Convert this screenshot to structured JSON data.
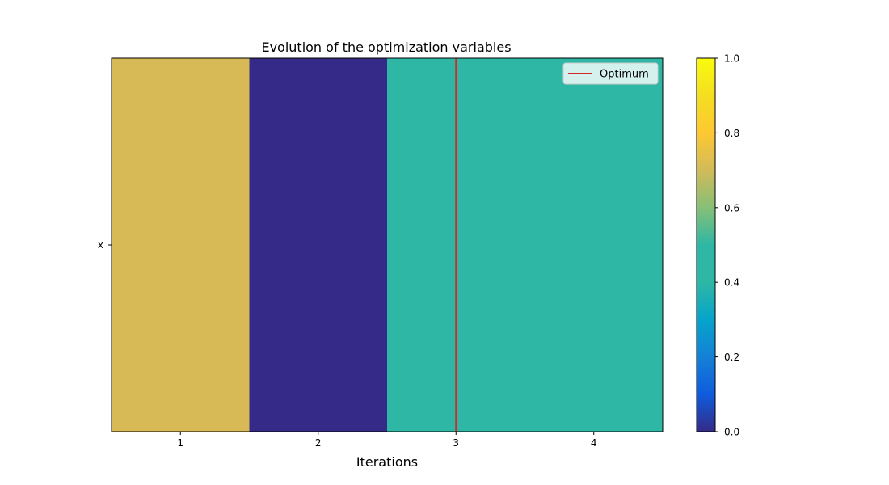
{
  "chart_data": {
    "type": "heatmap",
    "title": "Evolution of the optimization variables",
    "xlabel": "Iterations",
    "ylabel": "",
    "x": [
      1,
      2,
      3,
      4
    ],
    "xlim": [
      0.5,
      4.5
    ],
    "xticks": [
      "1",
      "2",
      "3",
      "4"
    ],
    "rows": [
      "x"
    ],
    "values": [
      [
        0.75,
        0.0,
        0.5,
        0.5
      ]
    ],
    "colorbar": {
      "range": [
        0,
        1
      ],
      "ticks": [
        "0.0",
        "0.2",
        "0.4",
        "0.6",
        "0.8",
        "1.0"
      ],
      "colormap": "parula"
    },
    "optimum": {
      "x": 3,
      "color": "#d62728"
    },
    "legend": {
      "entries": [
        "Optimum"
      ],
      "placement": "upper right"
    },
    "grid": false
  }
}
